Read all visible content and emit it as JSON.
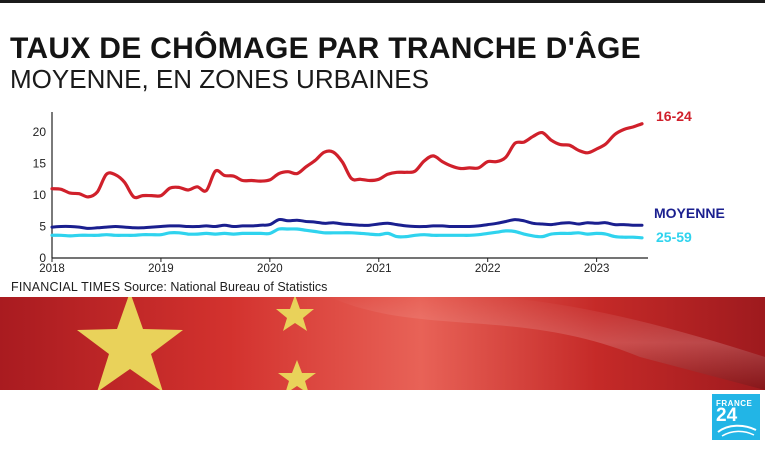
{
  "title": "TAUX DE CHÔMAGE PAR TRANCHE D'ÂGE",
  "subtitle": "MOYENNE, EN ZONES URBAINES",
  "source": {
    "brand": "FINANCIAL TIMES",
    "text": "Source: National Bureau of Statistics"
  },
  "logo": {
    "top": "FRANCE",
    "number": "24"
  },
  "colors": {
    "youth": "#d0202b",
    "average": "#1a1f8f",
    "adult": "#2fd3ee",
    "flag_red": "#c8262a",
    "flag_star": "#e9d25a",
    "logo_bg": "#22b5e6"
  },
  "chart_data": {
    "type": "line",
    "title": "TAUX DE CHÔMAGE PAR TRANCHE D'ÂGE",
    "subtitle": "MOYENNE, EN ZONES URBAINES",
    "x_start": "2018-01",
    "x_end": "2023-06",
    "xticks": [
      "2018",
      "2019",
      "2020",
      "2021",
      "2022",
      "2023"
    ],
    "yticks": [
      0,
      5,
      10,
      15,
      20
    ],
    "ylim": [
      0,
      22
    ],
    "grid": false,
    "series": [
      {
        "name": "16-24",
        "color": "#d0202b",
        "values": [
          11.0,
          10.9,
          10.3,
          10.2,
          9.7,
          10.5,
          13.3,
          13.2,
          12.0,
          9.7,
          9.9,
          9.9,
          9.9,
          11.1,
          11.2,
          10.8,
          11.3,
          10.7,
          13.8,
          13.1,
          13.0,
          12.3,
          12.3,
          12.2,
          12.4,
          13.4,
          13.7,
          13.4,
          14.5,
          15.5,
          16.8,
          16.8,
          15.2,
          12.6,
          12.5,
          12.3,
          12.5,
          13.3,
          13.6,
          13.6,
          13.8,
          15.4,
          16.2,
          15.3,
          14.6,
          14.2,
          14.3,
          14.3,
          15.3,
          15.3,
          16.0,
          18.2,
          18.4,
          19.3,
          19.9,
          18.7,
          18.0,
          17.9,
          17.1,
          16.7,
          17.3,
          18.1,
          19.6,
          20.4,
          20.8,
          21.3
        ]
      },
      {
        "name": "MOYENNE",
        "color": "#1a1f8f",
        "values": [
          4.9,
          5.0,
          5.0,
          4.9,
          4.7,
          4.8,
          4.9,
          5.0,
          4.9,
          4.8,
          4.8,
          4.9,
          5.0,
          5.1,
          5.1,
          5.0,
          5.0,
          5.1,
          5.0,
          5.2,
          5.0,
          5.1,
          5.1,
          5.2,
          5.3,
          6.1,
          5.9,
          6.0,
          5.8,
          5.7,
          5.5,
          5.6,
          5.4,
          5.3,
          5.2,
          5.2,
          5.4,
          5.5,
          5.3,
          5.1,
          5.0,
          5.0,
          5.1,
          5.1,
          5.0,
          5.0,
          5.0,
          5.1,
          5.3,
          5.5,
          5.8,
          6.1,
          5.9,
          5.5,
          5.4,
          5.3,
          5.5,
          5.6,
          5.4,
          5.6,
          5.5,
          5.6,
          5.3,
          5.3,
          5.2,
          5.2
        ]
      },
      {
        "name": "25-59",
        "color": "#2fd3ee",
        "values": [
          3.6,
          3.6,
          3.5,
          3.6,
          3.6,
          3.6,
          3.7,
          3.6,
          3.6,
          3.6,
          3.7,
          3.7,
          3.7,
          4.0,
          4.0,
          3.8,
          3.8,
          3.9,
          3.8,
          3.9,
          3.8,
          3.9,
          3.9,
          3.9,
          3.9,
          4.6,
          4.6,
          4.6,
          4.4,
          4.2,
          4.0,
          4.0,
          4.0,
          4.0,
          3.9,
          3.8,
          3.7,
          3.9,
          3.4,
          3.4,
          3.6,
          3.7,
          3.6,
          3.6,
          3.6,
          3.6,
          3.6,
          3.7,
          3.9,
          4.1,
          4.3,
          4.2,
          3.8,
          3.5,
          3.4,
          3.8,
          3.9,
          3.9,
          4.0,
          3.8,
          3.9,
          3.8,
          3.4,
          3.3,
          3.3,
          3.2
        ]
      }
    ]
  }
}
